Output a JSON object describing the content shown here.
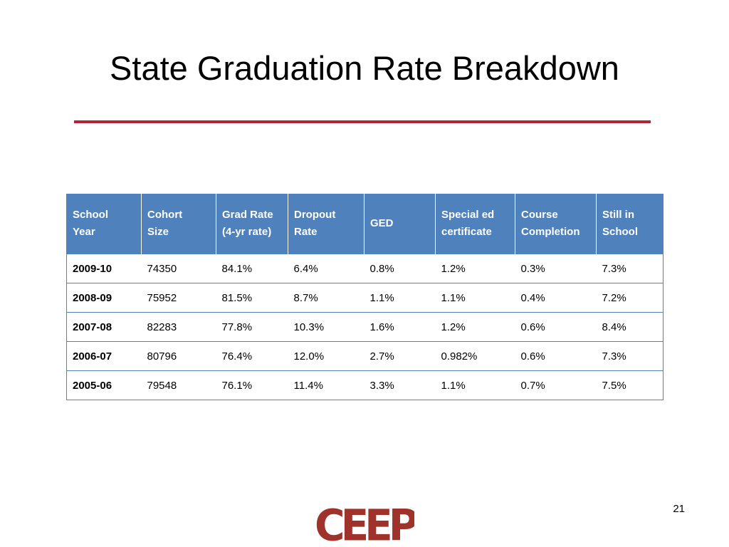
{
  "slide": {
    "title": "State Graduation Rate Breakdown",
    "page_number": "21",
    "logo_text": "CEEP",
    "accent_color": "#b1243a",
    "logo_color": "#a0322c"
  },
  "table": {
    "header_color": "#4f81bd",
    "columns": [
      [
        "School",
        "Year"
      ],
      [
        "Cohort",
        "Size"
      ],
      [
        "Grad Rate",
        "(4-yr rate)"
      ],
      [
        "Dropout",
        "Rate"
      ],
      [
        "GED"
      ],
      [
        "Special ed",
        "certificate"
      ],
      [
        "Course",
        "Completion"
      ],
      [
        "Still in",
        "School"
      ]
    ],
    "rows": [
      [
        "2009-10",
        "74350",
        "84.1%",
        "6.4%",
        "0.8%",
        "1.2%",
        "0.3%",
        "7.3%"
      ],
      [
        "2008-09",
        "75952",
        "81.5%",
        "8.7%",
        "1.1%",
        "1.1%",
        "0.4%",
        "7.2%"
      ],
      [
        "2007-08",
        "82283",
        "77.8%",
        "10.3%",
        "1.6%",
        "1.2%",
        "0.6%",
        "8.4%"
      ],
      [
        "2006-07",
        "80796",
        "76.4%",
        "12.0%",
        "2.7%",
        "0.982%",
        "0.6%",
        "7.3%"
      ],
      [
        "2005-06",
        "79548",
        "76.1%",
        "11.4%",
        "3.3%",
        "1.1%",
        "0.7%",
        "7.5%"
      ]
    ]
  }
}
